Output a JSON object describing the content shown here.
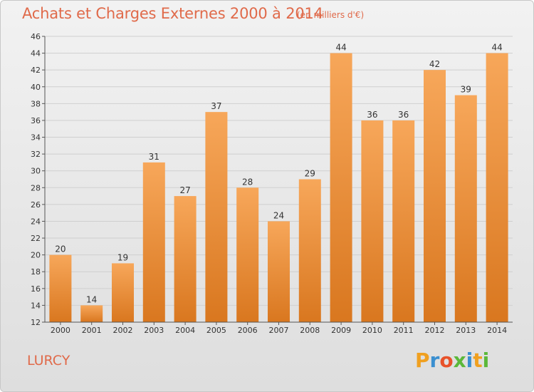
{
  "header": {
    "title": "Achats et Charges Externes 2000 à 2014",
    "unit": "(en milliers d'€)"
  },
  "footer": {
    "place": "LURCY",
    "brand": {
      "letters": [
        "P",
        "r",
        "o",
        "x",
        "i",
        "t",
        "i"
      ],
      "colors": [
        "#f0a020",
        "#3a8fd0",
        "#e8522a",
        "#5bb83a",
        "#3a8fd0",
        "#f0a020",
        "#5bb83a"
      ]
    }
  },
  "chart_data": {
    "type": "bar",
    "categories": [
      "2000",
      "2001",
      "2002",
      "2003",
      "2004",
      "2005",
      "2006",
      "2007",
      "2008",
      "2009",
      "2010",
      "2011",
      "2012",
      "2013",
      "2014"
    ],
    "values": [
      20,
      14,
      19,
      31,
      27,
      37,
      28,
      24,
      29,
      44,
      36,
      36,
      42,
      39,
      44
    ],
    "data_labels": [
      "20",
      "14",
      "19",
      "31",
      "27",
      "37",
      "28",
      "24",
      "29",
      "44",
      "36",
      "36",
      "42",
      "39",
      "44"
    ],
    "ylim": [
      12,
      46
    ],
    "yticks": [
      12,
      14,
      16,
      18,
      20,
      22,
      24,
      26,
      28,
      30,
      32,
      34,
      36,
      38,
      40,
      42,
      44,
      46
    ],
    "grid": true,
    "bar_color": "#f0963c",
    "xlabel": "",
    "ylabel": ""
  }
}
